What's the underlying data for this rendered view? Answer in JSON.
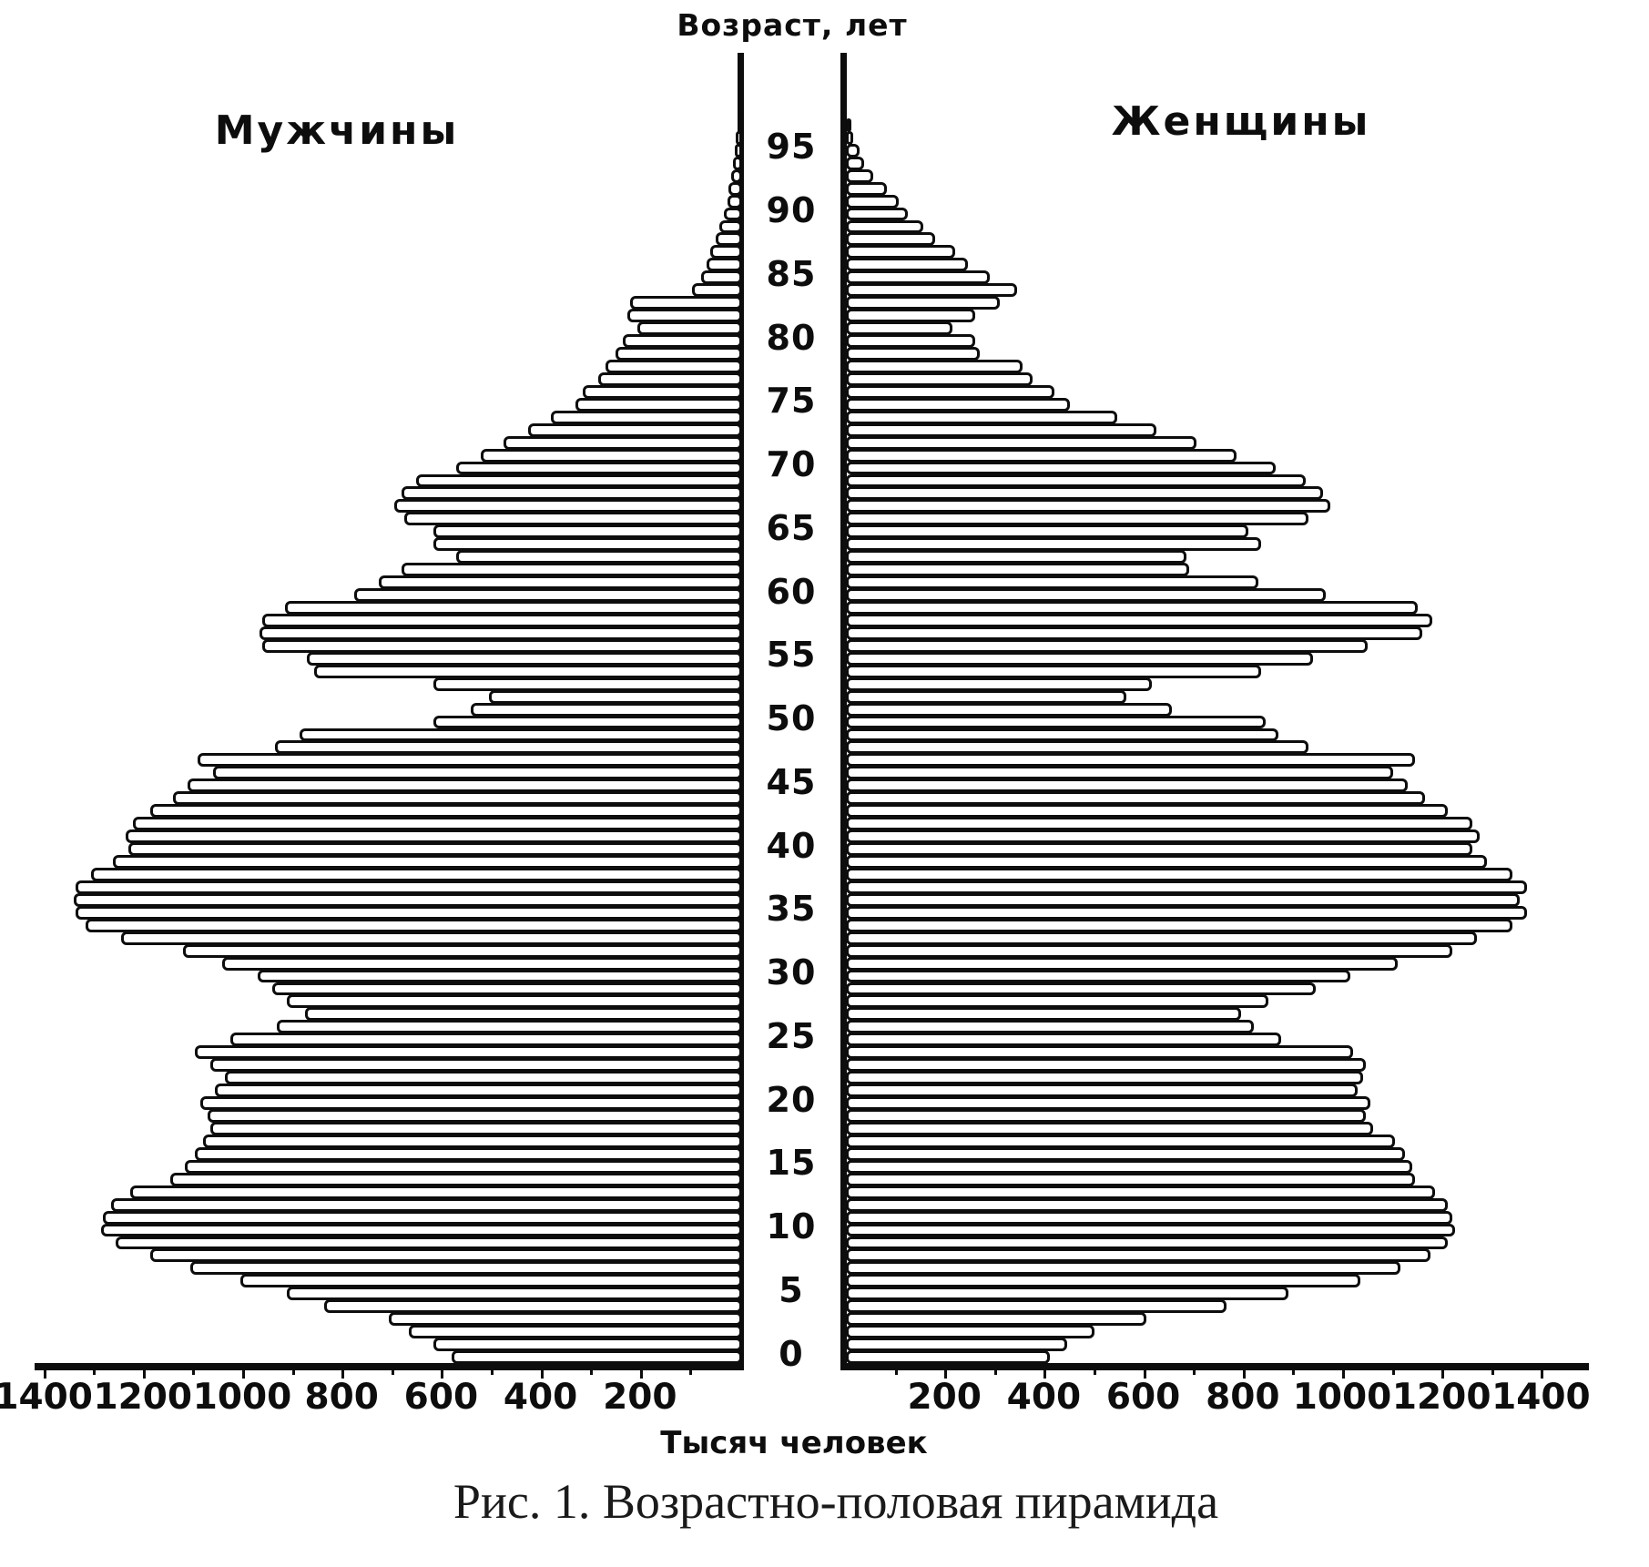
{
  "page": {
    "title": "Возраст, лет",
    "left_group_label": "Мужчины",
    "right_group_label": "Женщины",
    "x_axis_label": "Тысяч человек",
    "caption": "Рис. 1. Возрастно-половая пирамида"
  },
  "chart_data": {
    "type": "bar",
    "subtype": "population-pyramid",
    "title": "Возраст, лет",
    "xlabel": "Тысяч человек",
    "ylabel": "Возраст, лет",
    "units": "тысяч человек",
    "age_min": 0,
    "age_max": 97,
    "age_tick_labels": [
      0,
      5,
      10,
      15,
      20,
      25,
      30,
      35,
      40,
      45,
      50,
      55,
      60,
      65,
      70,
      75,
      80,
      85,
      90,
      95
    ],
    "x_ticks_left": [
      1400,
      1200,
      1000,
      800,
      600,
      400,
      200
    ],
    "x_ticks_right": [
      200,
      400,
      600,
      800,
      1000,
      1200,
      1400
    ],
    "xlim_per_side": [
      0,
      1400
    ],
    "grid": false,
    "legend_position": "top (group labels above each side)",
    "colors": {
      "bar_fill": "#ffffff",
      "bar_border": "#0d0d0d",
      "background": "#ffffff"
    },
    "series": [
      {
        "name": "Мужчины",
        "side": "left",
        "values": [
          585,
          620,
          670,
          710,
          840,
          915,
          1010,
          1110,
          1190,
          1260,
          1290,
          1285,
          1270,
          1230,
          1150,
          1120,
          1100,
          1085,
          1070,
          1075,
          1090,
          1060,
          1040,
          1070,
          1100,
          1030,
          935,
          880,
          915,
          945,
          975,
          1045,
          1125,
          1250,
          1320,
          1340,
          1345,
          1340,
          1310,
          1265,
          1235,
          1240,
          1225,
          1190,
          1145,
          1115,
          1065,
          1095,
          940,
          890,
          620,
          545,
          510,
          620,
          860,
          875,
          965,
          970,
          965,
          920,
          780,
          730,
          685,
          575,
          620,
          620,
          680,
          700,
          685,
          655,
          575,
          525,
          480,
          430,
          385,
          335,
          320,
          290,
          275,
          255,
          240,
          210,
          230,
          225,
          100,
          82,
          72,
          64,
          54,
          45,
          36,
          30,
          27,
          22,
          18,
          15,
          12,
          8
        ]
      },
      {
        "name": "Женщины",
        "side": "right",
        "values": [
          410,
          445,
          500,
          605,
          765,
          890,
          1035,
          1115,
          1175,
          1210,
          1225,
          1220,
          1210,
          1185,
          1145,
          1140,
          1125,
          1105,
          1060,
          1045,
          1055,
          1030,
          1040,
          1045,
          1020,
          875,
          820,
          795,
          850,
          945,
          1015,
          1110,
          1220,
          1270,
          1340,
          1370,
          1355,
          1370,
          1340,
          1290,
          1260,
          1275,
          1260,
          1210,
          1165,
          1130,
          1100,
          1145,
          930,
          870,
          845,
          655,
          565,
          615,
          835,
          940,
          1050,
          1160,
          1180,
          1150,
          965,
          830,
          690,
          685,
          835,
          810,
          930,
          975,
          960,
          925,
          865,
          785,
          705,
          625,
          545,
          450,
          420,
          375,
          355,
          270,
          260,
          215,
          260,
          310,
          345,
          290,
          245,
          220,
          180,
          155,
          125,
          107,
          82,
          55,
          36,
          27,
          14,
          8
        ]
      }
    ]
  }
}
